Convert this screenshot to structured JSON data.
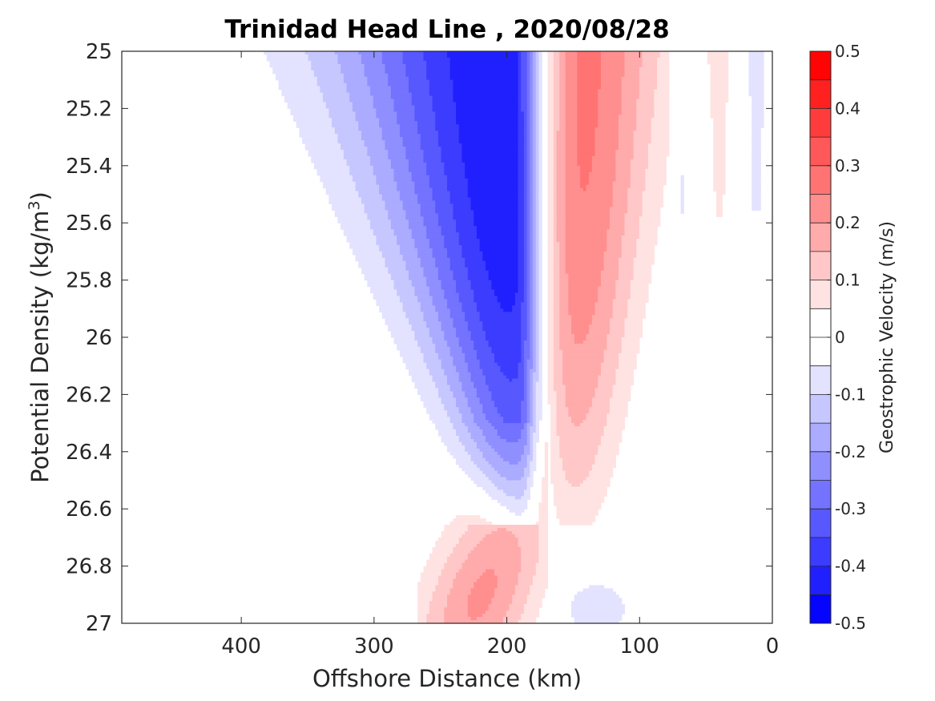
{
  "chart_data": {
    "type": "contour",
    "title": "Trinidad Head Line , 2020/08/28",
    "xlabel": "Offshore Distance (km)",
    "ylabel": "Potential Density (kg/m",
    "ylabel_sup": "3",
    "ylabel_close": ")",
    "xlim": [
      490,
      0
    ],
    "x_reversed": true,
    "ylim": [
      25,
      27
    ],
    "y_reversed": true,
    "x_ticks": [
      400,
      300,
      200,
      100,
      0
    ],
    "y_ticks": [
      25,
      25.2,
      25.4,
      25.6,
      25.8,
      26,
      26.2,
      26.4,
      26.6,
      26.8,
      27
    ],
    "y_tick_labels": [
      "25",
      "25.2",
      "25.4",
      "25.6",
      "25.8",
      "26",
      "26.2",
      "26.4",
      "26.6",
      "26.8",
      "27"
    ],
    "colorbar": {
      "label": "Geostrophic Velocity (m/s)",
      "range": [
        -0.5,
        0.5
      ],
      "step": 0.05,
      "ticks": [
        0.5,
        0.4,
        0.3,
        0.2,
        0.1,
        0,
        -0.1,
        -0.2,
        -0.3,
        -0.4,
        -0.5
      ],
      "tick_labels": [
        "0.5",
        "0.4",
        "0.3",
        "0.2",
        "0.1",
        "0",
        "-0.1",
        "-0.2",
        "-0.3",
        "-0.4",
        "-0.5"
      ],
      "colormap": "blue-white-red"
    },
    "features": [
      {
        "name": "southward jet",
        "sign": "negative",
        "center_km": 200,
        "density_range": [
          25,
          26.65
        ],
        "min_velocity": -0.45
      },
      {
        "name": "northward jet",
        "sign": "positive",
        "center_km": 140,
        "density_range": [
          25,
          26.65
        ],
        "max_velocity": 0.25
      },
      {
        "name": "deep positive lens",
        "sign": "positive",
        "center_km": 210,
        "density_range": [
          26.3,
          27
        ],
        "max_velocity": 0.2
      },
      {
        "name": "deep negative patch",
        "sign": "negative",
        "center_km": 130,
        "density_range": [
          26.8,
          27
        ],
        "min_velocity": -0.05
      },
      {
        "name": "nearshore negative streak A",
        "sign": "negative",
        "center_km": 68,
        "density_range": [
          25,
          25.57
        ],
        "min_velocity": -0.05
      },
      {
        "name": "nearshore positive streak",
        "sign": "positive",
        "center_km": 40,
        "density_range": [
          25,
          25.58
        ],
        "max_velocity": 0.05
      },
      {
        "name": "nearshore negative streak B",
        "sign": "negative",
        "center_km": 12,
        "density_range": [
          25,
          25.55
        ],
        "min_velocity": -0.05
      }
    ]
  },
  "colors": {
    "axis": "#262626",
    "background": "#ffffff",
    "positive_max": "#ff0000",
    "negative_max": "#0000ff"
  }
}
